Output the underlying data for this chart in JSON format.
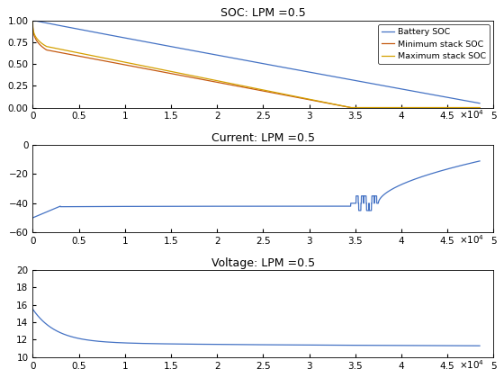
{
  "title_soc": "SOC: LPM =0.5",
  "title_current": "Current: LPM =0.5",
  "title_voltage": "Voltage: LPM =0.5",
  "xlim": [
    0,
    50000
  ],
  "soc_ylim": [
    0,
    1
  ],
  "current_ylim": [
    -60,
    0
  ],
  "voltage_ylim": [
    10,
    20
  ],
  "line_color_blue": "#4472C4",
  "line_color_orange": "#D4A000",
  "line_color_red": "#C55A11",
  "legend_labels": [
    "Battery SOC",
    "Minimum stack SOC",
    "Maximum stack SOC"
  ],
  "fig_width": 5.6,
  "fig_height": 4.2,
  "dpi": 100
}
